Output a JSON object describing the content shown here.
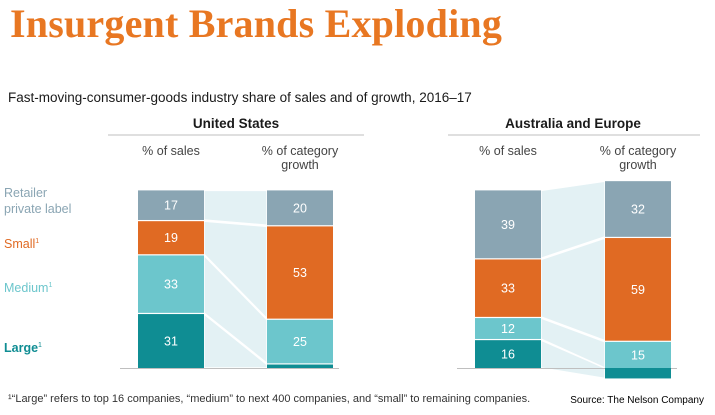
{
  "header": {
    "title": "Insurgent Brands Exploding",
    "subtitle": "Fast-moving-consumer-goods industry share of sales and of growth, 2016–17"
  },
  "footer": {
    "footnote": "¹“Large” refers to top 16 companies, “medium” to next 400 companies, and “small” to remaining companies.",
    "source": "Source: The Nelson Company"
  },
  "colors": {
    "retailer": "#8aa5b3",
    "small": "#e06a23",
    "medium": "#6cc6cc",
    "large": "#0f8d93",
    "connector": "#e3f1f4"
  },
  "legend": [
    {
      "key": "retailer",
      "lines": [
        "Retailer",
        "private label"
      ],
      "sup": "",
      "color": "#8aa5b3"
    },
    {
      "key": "small",
      "lines": [
        "Small"
      ],
      "sup": "1",
      "color": "#e06a23"
    },
    {
      "key": "medium",
      "lines": [
        "Medium"
      ],
      "sup": "1",
      "color": "#6cc6cc"
    },
    {
      "key": "large",
      "lines": [
        "Large"
      ],
      "sup": "1",
      "color": "#0f8d93"
    }
  ],
  "chart_data": {
    "type": "bar",
    "stacked": true,
    "segment_order": [
      "Large",
      "Medium",
      "Small",
      "Retailer private label"
    ],
    "panels": [
      {
        "title": "United States",
        "categories": [
          "% of sales",
          "% of category growth"
        ],
        "category_lines": [
          [
            "% of sales"
          ],
          [
            "% of category",
            "growth"
          ]
        ],
        "series": [
          {
            "key": "large",
            "values": [
              31,
              2
            ]
          },
          {
            "key": "medium",
            "values": [
              33,
              25
            ]
          },
          {
            "key": "small",
            "values": [
              19,
              53
            ]
          },
          {
            "key": "retailer",
            "values": [
              17,
              20
            ]
          }
        ],
        "value_labels": [
          {
            "large": "31",
            "medium": "33",
            "small": "19",
            "retailer": "17"
          },
          {
            "large": "",
            "medium": "25",
            "small": "53",
            "retailer": "20"
          }
        ]
      },
      {
        "title": "Australia and Europe",
        "categories": [
          "% of sales",
          "% of category growth"
        ],
        "category_lines": [
          [
            "% of sales"
          ],
          [
            "% of category",
            "growth"
          ]
        ],
        "series": [
          {
            "key": "large",
            "values": [
              16,
              -6
            ]
          },
          {
            "key": "medium",
            "values": [
              12,
              15
            ]
          },
          {
            "key": "small",
            "values": [
              33,
              59
            ]
          },
          {
            "key": "retailer",
            "values": [
              39,
              32
            ]
          }
        ],
        "value_labels": [
          {
            "large": "16",
            "medium": "12",
            "small": "33",
            "retailer": "39"
          },
          {
            "large": "",
            "medium": "15",
            "small": "59",
            "retailer": "32"
          }
        ]
      }
    ]
  }
}
